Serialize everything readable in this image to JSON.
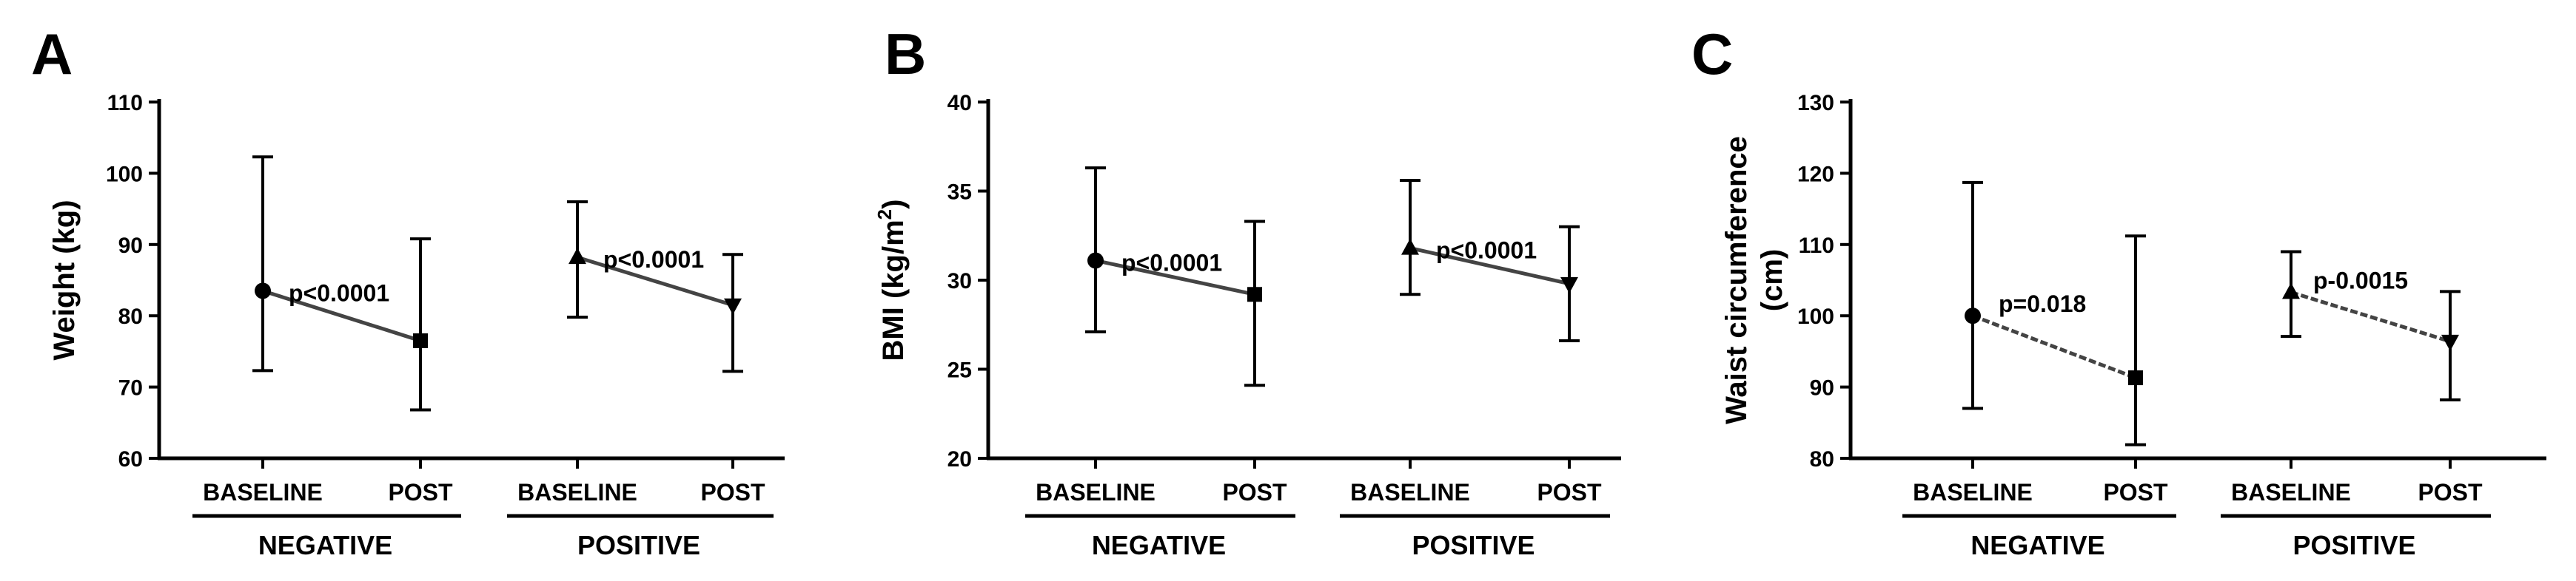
{
  "chart_data": [
    {
      "type": "line",
      "panel": "A",
      "ylabel": "Weight (kg)",
      "ylim": [
        60,
        110
      ],
      "yticks": [
        60,
        70,
        80,
        90,
        100,
        110
      ],
      "dashed": false,
      "groups": [
        {
          "label": "NEGATIVE",
          "categories": [
            "BASELINE",
            "POST"
          ],
          "values": [
            83.5,
            76.5
          ],
          "lower": [
            72.3,
            66.8
          ],
          "upper": [
            102.3,
            90.8
          ],
          "annotation": "p<0.0001",
          "markers": [
            "circle",
            "square"
          ]
        },
        {
          "label": "POSITIVE",
          "categories": [
            "BASELINE",
            "POST"
          ],
          "values": [
            88.2,
            81.5
          ],
          "lower": [
            79.8,
            72.2
          ],
          "upper": [
            96.0,
            88.6
          ],
          "annotation": "p<0.0001",
          "markers": [
            "triangle-up",
            "triangle-down"
          ]
        }
      ]
    },
    {
      "type": "line",
      "panel": "B",
      "ylabel": "BMI (kg/m",
      "ylabel_sup": "2",
      "ylabel_end": ")",
      "ylim": [
        20,
        40
      ],
      "yticks": [
        20,
        25,
        30,
        35,
        40
      ],
      "dashed": false,
      "groups": [
        {
          "label": "NEGATIVE",
          "categories": [
            "BASELINE",
            "POST"
          ],
          "values": [
            31.1,
            29.2
          ],
          "lower": [
            27.1,
            24.1
          ],
          "upper": [
            36.3,
            33.3
          ],
          "annotation": "p<0.0001",
          "markers": [
            "circle",
            "square"
          ]
        },
        {
          "label": "POSITIVE",
          "categories": [
            "BASELINE",
            "POST"
          ],
          "values": [
            31.8,
            29.8
          ],
          "lower": [
            29.2,
            26.6
          ],
          "upper": [
            35.6,
            33.0
          ],
          "annotation": "p<0.0001",
          "markers": [
            "triangle-up",
            "triangle-down"
          ]
        }
      ]
    },
    {
      "type": "line",
      "panel": "C",
      "ylabel": "Waist circumference",
      "ylabel2": "(cm)",
      "ylim": [
        80,
        130
      ],
      "yticks": [
        80,
        90,
        100,
        110,
        120,
        130
      ],
      "dashed": true,
      "groups": [
        {
          "label": "NEGATIVE",
          "categories": [
            "BASELINE",
            "POST"
          ],
          "values": [
            100.0,
            91.3
          ],
          "lower": [
            87.0,
            81.9
          ],
          "upper": [
            118.7,
            111.2
          ],
          "annotation": "p=0.018",
          "markers": [
            "circle",
            "square"
          ]
        },
        {
          "label": "POSITIVE",
          "categories": [
            "BASELINE",
            "POST"
          ],
          "values": [
            103.3,
            96.4
          ],
          "lower": [
            97.1,
            88.2
          ],
          "upper": [
            109.0,
            103.4
          ],
          "annotation": "p-0.0015",
          "markers": [
            "triangle-up",
            "triangle-down"
          ]
        }
      ]
    }
  ]
}
